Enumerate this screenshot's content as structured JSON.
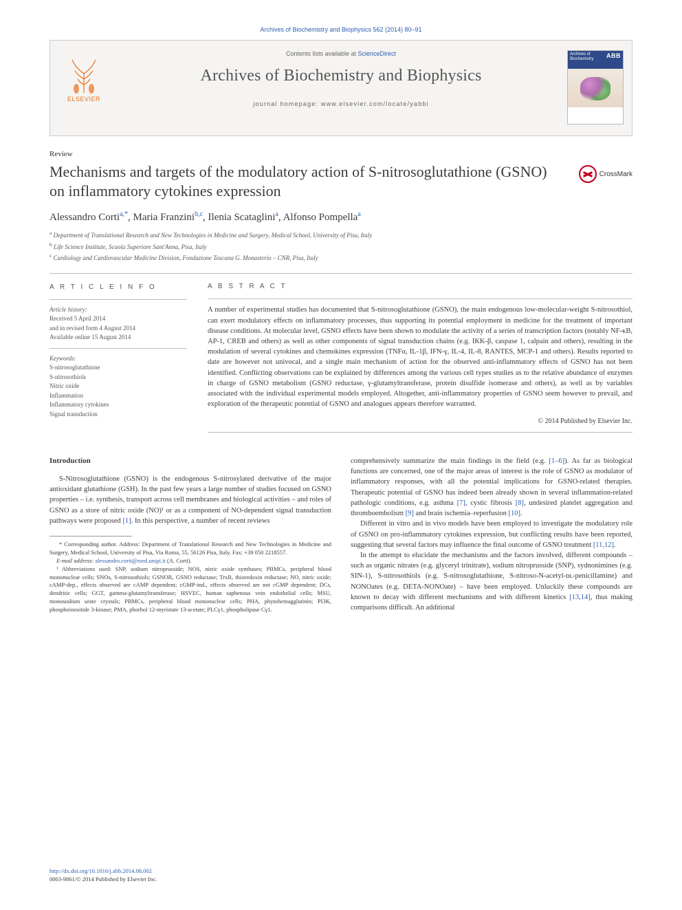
{
  "citation": "Archives of Biochemistry and Biophysics 562 (2014) 80–91",
  "header": {
    "contents_prefix": "Contents lists available at ",
    "contents_link": "ScienceDirect",
    "journal_name": "Archives of Biochemistry and Biophysics",
    "homepage_prefix": "journal homepage: ",
    "homepage_url": "www.elsevier.com/locate/yabbi",
    "publisher": "ELSEVIER",
    "cover_line1": "Archives of",
    "cover_line2": "Biochemistry",
    "cover_line3": "Biophysics",
    "cover_abb": "ABB"
  },
  "article_type": "Review",
  "title": "Mechanisms and targets of the modulatory action of S-nitrosoglutathione (GSNO) on inflammatory cytokines expression",
  "crossmark": "CrossMark",
  "authors_html": "Alessandro Corti",
  "authors": [
    {
      "name": "Alessandro Corti",
      "sup": "a,*"
    },
    {
      "name": "Maria Franzini",
      "sup": "b,c"
    },
    {
      "name": "Ilenia Scataglini",
      "sup": "a"
    },
    {
      "name": "Alfonso Pompella",
      "sup": "a"
    }
  ],
  "affiliations": [
    {
      "sup": "a",
      "text": "Department of Translational Research and New Technologies in Medicine and Surgery, Medical School, University of Pisa, Italy"
    },
    {
      "sup": "b",
      "text": "Life Science Institute, Scuola Superiore Sant'Anna, Pisa, Italy"
    },
    {
      "sup": "c",
      "text": "Cardiology and Cardiovascular Medicine Division, Fondazione Toscana G. Monasterio – CNR, Pisa, Italy"
    }
  ],
  "info": {
    "heading": "A R T I C L E   I N F O",
    "history_label": "Article history:",
    "received": "Received 5 April 2014",
    "revised": "and in revised form 4 August 2014",
    "online": "Available online 15 August 2014",
    "keywords_label": "Keywords:",
    "keywords": [
      "S-nitrosoglutathione",
      "S-nitrosothiols",
      "Nitric oxide",
      "Inflammation",
      "Inflammatory cytokines",
      "Signal transduction"
    ]
  },
  "abstract": {
    "heading": "A B S T R A C T",
    "text": "A number of experimental studies has documented that S-nitrosoglutathione (GSNO), the main endogenous low-molecular-weight S-nitrosothiol, can exert modulatory effects on inflammatory processes, thus supporting its potential employment in medicine for the treatment of important disease conditions. At molecular level, GSNO effects have been shown to modulate the activity of a series of transcription factors (notably NF-κB, AP-1, CREB and others) as well as other components of signal transduction chains (e.g. IKK-β, caspase 1, calpain and others), resulting in the modulation of several cytokines and chemokines expression (TNFα, IL-1β, IFN-γ, IL-4, IL-8, RANTES, MCP-1 and others). Results reported to date are however not univocal, and a single main mechanism of action for the observed anti-inflammatory effects of GSNO has not been identified. Conflicting observations can be explained by differences among the various cell types studies as to the relative abundance of enzymes in charge of GSNO metabolism (GSNO reductase, γ-glutamyltransferase, protein disulfide isomerase and others), as well as by variables associated with the individual experimental models employed. Altogether, anti-inflammatory properties of GSNO seem however to prevail, and exploration of the therapeutic potential of GSNO and analogues appears therefore warranted.",
    "copyright": "© 2014 Published by Elsevier Inc."
  },
  "intro_heading": "Introduction",
  "col1_p1": "S-Nitrosoglutathione (GSNO) is the endogenous S-nitrosylated derivative of the major antioxidant glutathione (GSH). In the past few years a large number of studies focused on GSNO properties – i.e. synthesis, transport across cell membranes and biological activities – and roles of GSNO as a store of nitric oxide (NO)¹ or as a component of NO-dependent signal transduction pathways were proposed ",
  "col1_ref1": "[1]",
  "col1_p1_tail": ". In this perspective, a number of recent reviews",
  "col2_p1a": "comprehensively summarize the main findings in the field (e.g. ",
  "col2_ref16": "[1–6]",
  "col2_p1b": "). As far as biological functions are concerned, one of the major areas of interest is the role of GSNO as modulator of inflammatory responses, with all the potential implications for GSNO-related therapies. Therapeutic potential of GSNO has indeed been already shown in several inflammation-related pathologic conditions, e.g. asthma ",
  "col2_ref7": "[7]",
  "col2_p1c": ", cystic fibrosis ",
  "col2_ref8": "[8]",
  "col2_p1d": ", undesired platelet aggregation and thromboembolism ",
  "col2_ref9": "[9]",
  "col2_p1e": " and brain ischemia–reperfusion ",
  "col2_ref10": "[10]",
  "col2_p1f": ".",
  "col2_p2a": "Different in vitro and in vivo models have been employed to investigate the modulatory role of GSNO on pro-inflammatory cytokines expression, but conflicting results have been reported, suggesting that several factors may influence the final outcome of GSNO treatment ",
  "col2_ref1112": "[11,12]",
  "col2_p2b": ".",
  "col2_p3a": "In the attempt to elucidate the mechanisms and the factors involved, different compounds – such as organic nitrates (e.g. glyceryl trinitrate), sodium nitroprusside (SNP), sydnonimines (e.g. SIN-1), S-nitrosothiols (e.g. S-nitrosoglutathione, S-nitroso-N-acetyl-ᴅʟ-penicillamine) and NONOates (e.g. DETA-NONOate) – have been employed. Unluckily these compounds are known to decay with different mechanisms and with different kinetics ",
  "col2_ref1314": "[13,14]",
  "col2_p3b": ", thus making comparisons difficult. An additional",
  "footnotes": {
    "corr": "* Corresponding author. Address: Department of Translational Research and New Technologies in Medicine and Surgery, Medical School, University of Pisa, Via Roma, 55, 56126 Pisa, Italy. Fax: +39 050 2218557.",
    "email_label": "E-mail address: ",
    "email": "alessandro.corti@med.unipi.it",
    "email_tail": " (A. Corti).",
    "abbrev": "¹ Abbreviations used: SNP, sodium nitroprusside; NOS, nitric oxide synthases; PBMCs, peripheral blood mononuclear cells; SNOs, S-nitrosothiols; GSNOR, GSNO reductase; TrxR, thioredoxin reductase; NO, nitric oxide; cAMP-dep., effects observed are cAMP dependent; cGMP-ind., effects observed are not cGMP dependent; DCs, dendritic cells; GGT, gamma-glutamyltransferase; HSVEC, human saphenous vein endothelial cells; MSU, monosodium urate crystals; PBMCs, peripheral blood mononuclear cells; PHA, phytohemagglutinin; PI3K, phosphoinositide 3-kinase; PMA, phorbol 12-myristate 13-acetate; PLCγ1, phospholipase Cγ1."
  },
  "footer": {
    "doi": "http://dx.doi.org/10.1016/j.abb.2014.08.002",
    "issn": "0003-9861/© 2014 Published by Elsevier Inc."
  },
  "colors": {
    "link": "#2a5db0",
    "elsevier": "#e9711c",
    "rule": "#bbbbbb",
    "text": "#3a3a3a"
  }
}
